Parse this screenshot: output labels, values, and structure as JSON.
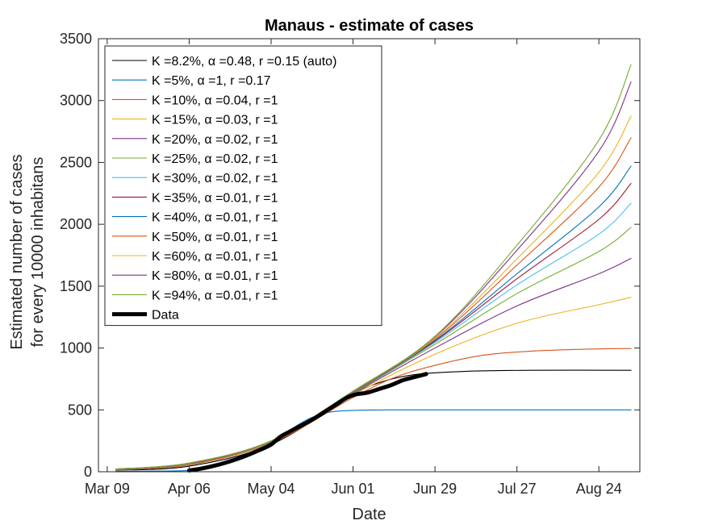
{
  "chart_data": {
    "type": "line",
    "title": "Manaus - estimate of cases",
    "xlabel": "Date",
    "ylabel_lines": [
      "Estimated number of cases",
      "for every 10000 inhabitans"
    ],
    "x_axis": {
      "type": "date",
      "range": [
        "2020-03-06",
        "2020-09-07"
      ],
      "ticks": [
        {
          "date": "2020-03-09",
          "label": "Mar 09"
        },
        {
          "date": "2020-04-06",
          "label": "Apr 06"
        },
        {
          "date": "2020-05-04",
          "label": "May 04"
        },
        {
          "date": "2020-06-01",
          "label": "Jun 01"
        },
        {
          "date": "2020-06-29",
          "label": "Jun 29"
        },
        {
          "date": "2020-07-27",
          "label": "Jul 27"
        },
        {
          "date": "2020-08-24",
          "label": "Aug 24"
        }
      ]
    },
    "ylim": [
      0,
      3500
    ],
    "yticks": [
      0,
      500,
      1000,
      1500,
      2000,
      2500,
      3000,
      3500
    ],
    "grid": false,
    "legend_position": "top-left",
    "series": [
      {
        "name": "K =8.2%, α =0.48, r =0.15 (auto)",
        "color": "#000000",
        "width": 1.1,
        "points": [
          [
            "2020-03-12",
            12
          ],
          [
            "2020-04-06",
            45
          ],
          [
            "2020-05-04",
            220
          ],
          [
            "2020-06-01",
            620
          ],
          [
            "2020-06-10",
            720
          ],
          [
            "2020-06-22",
            785
          ],
          [
            "2020-07-10",
            812
          ],
          [
            "2020-08-01",
            820
          ],
          [
            "2020-09-04",
            820
          ]
        ]
      },
      {
        "name": "K =5%, α =1, r =0.17",
        "color": "#0072BD",
        "width": 1.1,
        "points": [
          [
            "2020-03-12",
            3
          ],
          [
            "2020-04-06",
            10
          ],
          [
            "2020-04-15",
            40
          ],
          [
            "2020-04-25",
            120
          ],
          [
            "2020-05-04",
            220
          ],
          [
            "2020-05-10",
            330
          ],
          [
            "2020-05-18",
            440
          ],
          [
            "2020-05-25",
            485
          ],
          [
            "2020-06-05",
            498
          ],
          [
            "2020-06-20",
            500
          ],
          [
            "2020-09-04",
            500
          ]
        ]
      },
      {
        "name": "K =10%, α =0.04, r =1",
        "color": "#D95319",
        "width": 1.1,
        "points": [
          [
            "2020-03-12",
            15
          ],
          [
            "2020-04-06",
            55
          ],
          [
            "2020-05-04",
            230
          ],
          [
            "2020-06-01",
            600
          ],
          [
            "2020-06-15",
            760
          ],
          [
            "2020-06-29",
            860
          ],
          [
            "2020-07-15",
            940
          ],
          [
            "2020-08-01",
            975
          ],
          [
            "2020-08-24",
            993
          ],
          [
            "2020-09-04",
            996
          ]
        ]
      },
      {
        "name": "K =15%, α =0.03, r =1",
        "color": "#EDB120",
        "width": 1.1,
        "points": [
          [
            "2020-03-12",
            17
          ],
          [
            "2020-04-06",
            60
          ],
          [
            "2020-05-04",
            235
          ],
          [
            "2020-06-01",
            620
          ],
          [
            "2020-06-29",
            950
          ],
          [
            "2020-07-27",
            1200
          ],
          [
            "2020-08-24",
            1350
          ],
          [
            "2020-09-04",
            1410
          ]
        ]
      },
      {
        "name": "K =20%, α =0.02, r =1",
        "color": "#7E2F8E",
        "width": 1.1,
        "points": [
          [
            "2020-03-12",
            18
          ],
          [
            "2020-04-06",
            62
          ],
          [
            "2020-05-04",
            240
          ],
          [
            "2020-06-01",
            630
          ],
          [
            "2020-06-29",
            1000
          ],
          [
            "2020-07-27",
            1340
          ],
          [
            "2020-08-24",
            1600
          ],
          [
            "2020-09-04",
            1725
          ]
        ]
      },
      {
        "name": "K =25%, α =0.02, r =1",
        "color": "#77AC30",
        "width": 1.1,
        "points": [
          [
            "2020-03-12",
            19
          ],
          [
            "2020-04-06",
            64
          ],
          [
            "2020-05-04",
            242
          ],
          [
            "2020-06-01",
            635
          ],
          [
            "2020-06-29",
            1030
          ],
          [
            "2020-07-27",
            1440
          ],
          [
            "2020-08-24",
            1780
          ],
          [
            "2020-09-04",
            1975
          ]
        ]
      },
      {
        "name": "K =30%, α =0.02, r =1",
        "color": "#4DBEEE",
        "width": 1.1,
        "points": [
          [
            "2020-03-12",
            19
          ],
          [
            "2020-04-06",
            65
          ],
          [
            "2020-05-04",
            244
          ],
          [
            "2020-06-01",
            638
          ],
          [
            "2020-06-29",
            1045
          ],
          [
            "2020-07-27",
            1510
          ],
          [
            "2020-08-24",
            1920
          ],
          [
            "2020-09-04",
            2170
          ]
        ]
      },
      {
        "name": "K =35%, α =0.01, r =1",
        "color": "#A2142F",
        "width": 1.1,
        "points": [
          [
            "2020-03-12",
            20
          ],
          [
            "2020-04-06",
            66
          ],
          [
            "2020-05-04",
            245
          ],
          [
            "2020-06-01",
            640
          ],
          [
            "2020-06-29",
            1055
          ],
          [
            "2020-07-27",
            1560
          ],
          [
            "2020-08-24",
            2040
          ],
          [
            "2020-09-04",
            2330
          ]
        ]
      },
      {
        "name": "K =40%, α =0.01, r =1",
        "color": "#0072BD",
        "width": 1.1,
        "points": [
          [
            "2020-03-12",
            20
          ],
          [
            "2020-04-06",
            67
          ],
          [
            "2020-05-04",
            246
          ],
          [
            "2020-06-01",
            642
          ],
          [
            "2020-06-29",
            1062
          ],
          [
            "2020-07-27",
            1600
          ],
          [
            "2020-08-24",
            2140
          ],
          [
            "2020-09-04",
            2470
          ]
        ]
      },
      {
        "name": "K =50%, α =0.01, r =1",
        "color": "#D95319",
        "width": 1.1,
        "points": [
          [
            "2020-03-12",
            21
          ],
          [
            "2020-04-06",
            68
          ],
          [
            "2020-05-04",
            247
          ],
          [
            "2020-06-01",
            645
          ],
          [
            "2020-06-29",
            1072
          ],
          [
            "2020-07-27",
            1670
          ],
          [
            "2020-08-24",
            2300
          ],
          [
            "2020-09-04",
            2700
          ]
        ]
      },
      {
        "name": "K =60%, α =0.01, r =1",
        "color": "#EDB120",
        "width": 1.1,
        "points": [
          [
            "2020-03-12",
            21
          ],
          [
            "2020-04-06",
            69
          ],
          [
            "2020-05-04",
            248
          ],
          [
            "2020-06-01",
            648
          ],
          [
            "2020-06-29",
            1080
          ],
          [
            "2020-07-27",
            1720
          ],
          [
            "2020-08-24",
            2420
          ],
          [
            "2020-09-04",
            2875
          ]
        ]
      },
      {
        "name": "K =80%, α =0.01, r =1",
        "color": "#7E2F8E",
        "width": 1.1,
        "points": [
          [
            "2020-03-12",
            22
          ],
          [
            "2020-04-06",
            70
          ],
          [
            "2020-05-04",
            249
          ],
          [
            "2020-06-01",
            650
          ],
          [
            "2020-06-29",
            1090
          ],
          [
            "2020-07-27",
            1790
          ],
          [
            "2020-08-24",
            2590
          ],
          [
            "2020-09-04",
            3150
          ]
        ]
      },
      {
        "name": "K =94%, α =0.01, r =1",
        "color": "#77AC30",
        "width": 1.1,
        "points": [
          [
            "2020-03-12",
            22
          ],
          [
            "2020-04-06",
            71
          ],
          [
            "2020-05-04",
            250
          ],
          [
            "2020-06-01",
            652
          ],
          [
            "2020-06-29",
            1095
          ],
          [
            "2020-07-27",
            1830
          ],
          [
            "2020-08-24",
            2680
          ],
          [
            "2020-09-04",
            3290
          ]
        ]
      },
      {
        "name": "Data",
        "color": "#000000",
        "width": 5,
        "points": [
          [
            "2020-04-06",
            10
          ],
          [
            "2020-04-10",
            25
          ],
          [
            "2020-04-14",
            45
          ],
          [
            "2020-04-18",
            70
          ],
          [
            "2020-04-22",
            100
          ],
          [
            "2020-04-26",
            135
          ],
          [
            "2020-04-30",
            175
          ],
          [
            "2020-05-04",
            220
          ],
          [
            "2020-05-07",
            280
          ],
          [
            "2020-05-10",
            320
          ],
          [
            "2020-05-14",
            370
          ],
          [
            "2020-05-18",
            420
          ],
          [
            "2020-05-22",
            480
          ],
          [
            "2020-05-26",
            540
          ],
          [
            "2020-05-30",
            600
          ],
          [
            "2020-06-02",
            625
          ],
          [
            "2020-06-06",
            640
          ],
          [
            "2020-06-10",
            670
          ],
          [
            "2020-06-14",
            700
          ],
          [
            "2020-06-18",
            740
          ],
          [
            "2020-06-22",
            765
          ],
          [
            "2020-06-26",
            790
          ]
        ]
      }
    ]
  }
}
